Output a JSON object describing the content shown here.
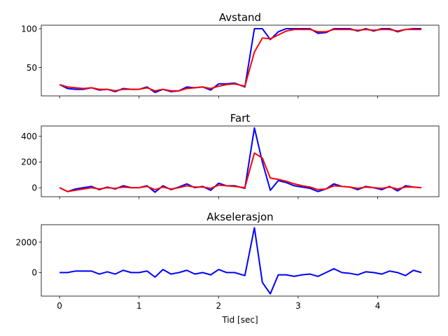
{
  "chart_data": [
    {
      "type": "line",
      "title": "Avstand",
      "xlim": [
        -0.23,
        4.77
      ],
      "ylim": [
        13.5,
        104.5
      ],
      "yticks": [
        50,
        100
      ],
      "xticks": [
        0,
        1,
        2,
        3,
        4
      ],
      "show_xtick_labels": false,
      "xlabel": "",
      "ylabel": "",
      "series": [
        {
          "color": "#0000ff",
          "x": [
            0,
            0.1,
            0.2,
            0.3,
            0.4,
            0.5,
            0.6,
            0.7,
            0.8,
            0.9,
            1.0,
            1.1,
            1.2,
            1.3,
            1.4,
            1.5,
            1.6,
            1.7,
            1.8,
            1.9,
            2.0,
            2.1,
            2.2,
            2.33,
            2.45,
            2.55,
            2.65,
            2.75,
            2.85,
            2.95,
            3.05,
            3.15,
            3.25,
            3.35,
            3.45,
            3.55,
            3.65,
            3.75,
            3.85,
            3.95,
            4.05,
            4.15,
            4.25,
            4.35,
            4.45,
            4.55
          ],
          "values": [
            28,
            23,
            22,
            22,
            24,
            21,
            22,
            19,
            23,
            22,
            22,
            25,
            18,
            22,
            19,
            20,
            25,
            24,
            25,
            21,
            29,
            29,
            30,
            25,
            100,
            100,
            86,
            96,
            100,
            100,
            100,
            100,
            94,
            95,
            100,
            100,
            100,
            97,
            100,
            97,
            100,
            100,
            96,
            99,
            100,
            100
          ]
        },
        {
          "color": "#ff0000",
          "x": [
            0,
            0.1,
            0.2,
            0.3,
            0.4,
            0.5,
            0.6,
            0.7,
            0.8,
            0.9,
            1.0,
            1.1,
            1.2,
            1.3,
            1.4,
            1.5,
            1.6,
            1.7,
            1.8,
            1.9,
            2.0,
            2.1,
            2.2,
            2.33,
            2.45,
            2.55,
            2.65,
            2.75,
            2.85,
            2.95,
            3.05,
            3.15,
            3.25,
            3.35,
            3.45,
            3.55,
            3.65,
            3.75,
            3.85,
            3.95,
            4.05,
            4.15,
            4.25,
            4.35,
            4.45,
            4.55
          ],
          "values": [
            28,
            25,
            24,
            23,
            24,
            22,
            22,
            20,
            22,
            22,
            22,
            24,
            20,
            22,
            20,
            20,
            23,
            24,
            25,
            23,
            26,
            28,
            29,
            26,
            70,
            88,
            87,
            92,
            97,
            99,
            99,
            99,
            96,
            96,
            99,
            99,
            99,
            98,
            99,
            98,
            99,
            99,
            97,
            99,
            99,
            99
          ]
        }
      ]
    },
    {
      "type": "line",
      "title": "Fart",
      "xlim": [
        -0.23,
        4.77
      ],
      "ylim": [
        -70,
        480
      ],
      "yticks": [
        0,
        200,
        400
      ],
      "xticks": [
        0,
        1,
        2,
        3,
        4
      ],
      "show_xtick_labels": false,
      "xlabel": "",
      "ylabel": "",
      "series": [
        {
          "color": "#0000ff",
          "x": [
            0,
            0.1,
            0.2,
            0.3,
            0.4,
            0.5,
            0.6,
            0.7,
            0.8,
            0.9,
            1.0,
            1.1,
            1.2,
            1.3,
            1.4,
            1.5,
            1.6,
            1.7,
            1.8,
            1.9,
            2.0,
            2.1,
            2.2,
            2.33,
            2.45,
            2.55,
            2.65,
            2.75,
            2.85,
            2.95,
            3.05,
            3.15,
            3.25,
            3.35,
            3.45,
            3.55,
            3.65,
            3.75,
            3.85,
            3.95,
            4.05,
            4.15,
            4.25,
            4.35,
            4.45,
            4.55
          ],
          "values": [
            0,
            -30,
            -10,
            0,
            10,
            -15,
            5,
            -10,
            15,
            0,
            0,
            15,
            -35,
            15,
            -15,
            5,
            30,
            0,
            10,
            -20,
            35,
            15,
            15,
            -5,
            465,
            200,
            -20,
            55,
            40,
            15,
            5,
            -5,
            -30,
            -10,
            30,
            10,
            5,
            -15,
            10,
            0,
            -15,
            10,
            -25,
            15,
            5,
            0
          ]
        },
        {
          "color": "#ff0000",
          "x": [
            0,
            0.1,
            0.2,
            0.3,
            0.4,
            0.5,
            0.6,
            0.7,
            0.8,
            0.9,
            1.0,
            1.1,
            1.2,
            1.3,
            1.4,
            1.5,
            1.6,
            1.7,
            1.8,
            1.9,
            2.0,
            2.1,
            2.2,
            2.33,
            2.45,
            2.55,
            2.65,
            2.75,
            2.85,
            2.95,
            3.05,
            3.15,
            3.25,
            3.35,
            3.45,
            3.55,
            3.65,
            3.75,
            3.85,
            3.95,
            4.05,
            4.15,
            4.25,
            4.35,
            4.45,
            4.55
          ],
          "values": [
            0,
            -30,
            -20,
            -10,
            0,
            -10,
            0,
            -5,
            5,
            0,
            0,
            10,
            -15,
            5,
            -10,
            0,
            15,
            5,
            5,
            -5,
            20,
            15,
            10,
            0,
            270,
            230,
            75,
            65,
            50,
            30,
            15,
            5,
            -15,
            -10,
            15,
            10,
            5,
            -5,
            5,
            0,
            -5,
            5,
            -10,
            5,
            5,
            0
          ]
        }
      ]
    },
    {
      "type": "line",
      "title": "Akselerasjon",
      "xlim": [
        -0.23,
        4.77
      ],
      "ylim": [
        -1550,
        3150
      ],
      "yticks": [
        0,
        2000
      ],
      "xticks": [
        0,
        1,
        2,
        3,
        4
      ],
      "show_xtick_labels": true,
      "xlabel": "Tid [sec]",
      "ylabel": "",
      "series": [
        {
          "color": "#0000ff",
          "x": [
            0,
            0.1,
            0.2,
            0.3,
            0.4,
            0.5,
            0.6,
            0.7,
            0.8,
            0.9,
            1.0,
            1.1,
            1.2,
            1.3,
            1.4,
            1.5,
            1.6,
            1.7,
            1.8,
            1.9,
            2.0,
            2.1,
            2.2,
            2.33,
            2.45,
            2.55,
            2.65,
            2.75,
            2.85,
            2.95,
            3.05,
            3.15,
            3.25,
            3.35,
            3.45,
            3.55,
            3.65,
            3.75,
            3.85,
            3.95,
            4.05,
            4.15,
            4.25,
            4.35,
            4.45,
            4.55
          ],
          "values": [
            0,
            0,
            100,
            100,
            100,
            -100,
            50,
            -100,
            150,
            0,
            0,
            100,
            -300,
            200,
            -100,
            0,
            150,
            -100,
            0,
            -150,
            200,
            0,
            0,
            -200,
            2950,
            -650,
            -1400,
            -150,
            -150,
            -250,
            -150,
            -100,
            -250,
            0,
            250,
            0,
            -50,
            -150,
            50,
            0,
            -100,
            100,
            0,
            -200,
            150,
            0
          ]
        }
      ]
    }
  ]
}
